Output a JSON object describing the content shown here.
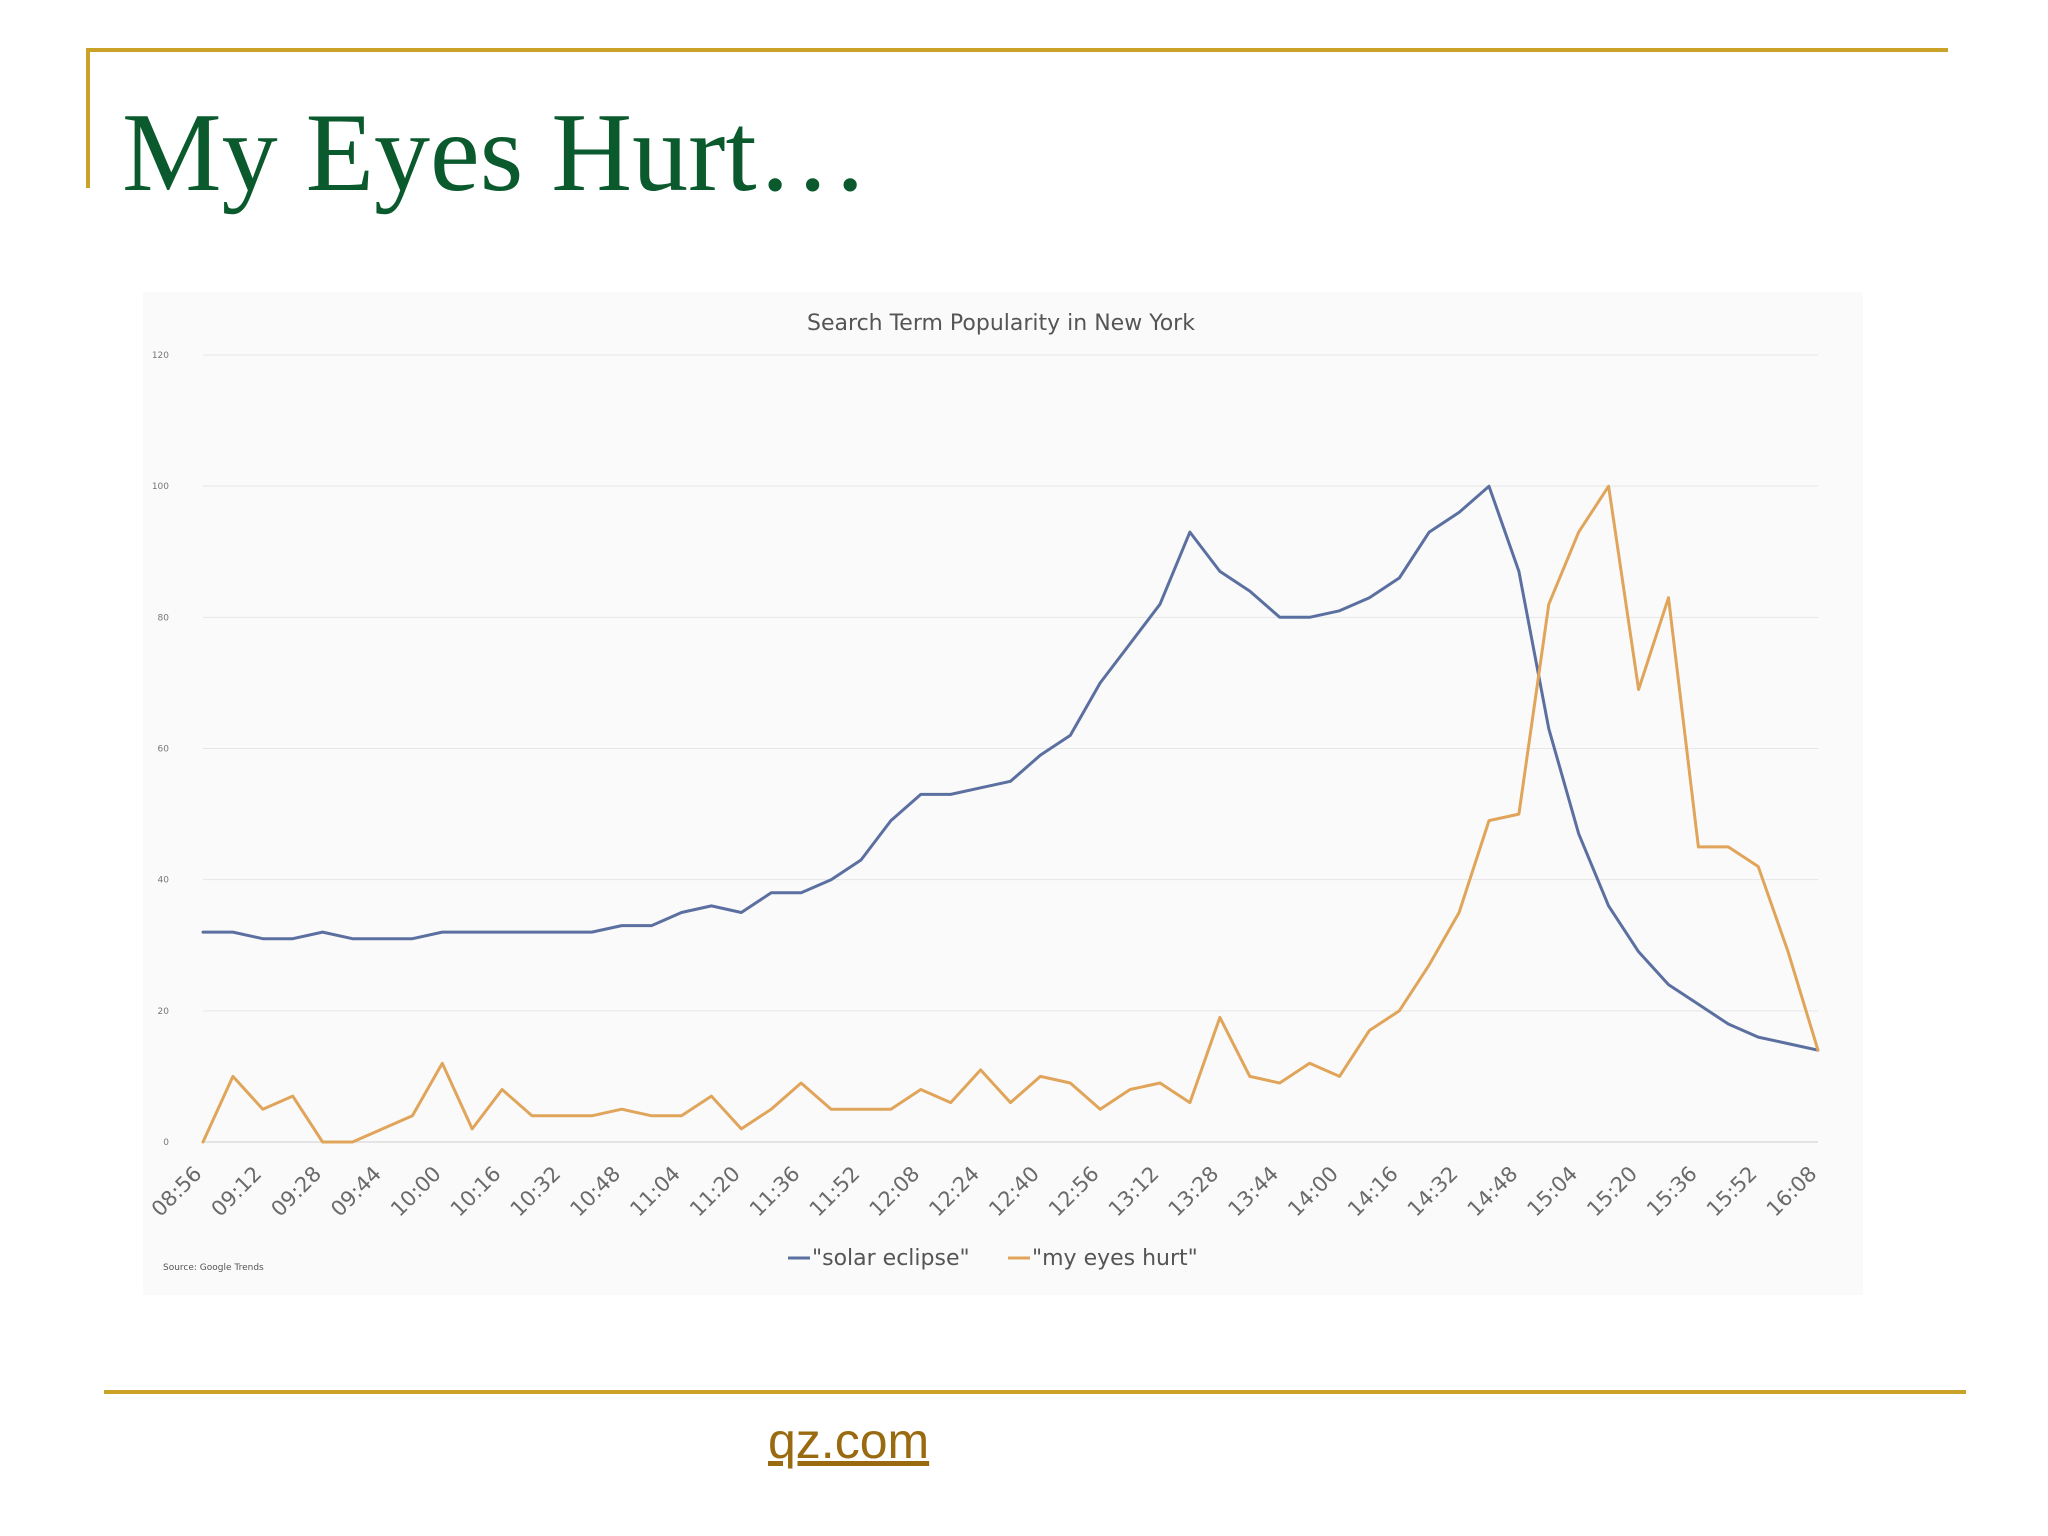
{
  "slide": {
    "title": "My Eyes Hurt…",
    "source_link": "qz.com",
    "colors": {
      "title": "#0b5a2e",
      "rules": "#c9a227",
      "link": "#9a6a10"
    }
  },
  "chart_data": {
    "type": "line",
    "title": "Search Term Popularity in New York",
    "source_note": "Source: Google Trends",
    "xlabel": "",
    "ylabel": "",
    "ylim": [
      0,
      120
    ],
    "yticks": [
      0,
      20,
      40,
      60,
      80,
      100,
      120
    ],
    "x_tick_labels": [
      "08:56",
      "09:12",
      "09:28",
      "09:44",
      "10:00",
      "10:16",
      "10:32",
      "10:48",
      "11:04",
      "11:20",
      "11:36",
      "11:52",
      "12:08",
      "12:24",
      "12:40",
      "12:56",
      "13:12",
      "13:28",
      "13:44",
      "14:00",
      "14:16",
      "14:32",
      "14:48",
      "15:04",
      "15:20",
      "15:36",
      "15:52",
      "16:08"
    ],
    "grid": true,
    "legend_position": "bottom",
    "series": [
      {
        "name": "\"solar eclipse\"",
        "color": "#5b6fa0",
        "values": [
          32,
          32,
          31,
          31,
          32,
          31,
          31,
          31,
          32,
          32,
          32,
          32,
          32,
          32,
          33,
          33,
          35,
          36,
          35,
          38,
          38,
          40,
          43,
          49,
          53,
          53,
          54,
          55,
          59,
          62,
          70,
          76,
          82,
          93,
          87,
          84,
          80,
          80,
          81,
          83,
          86,
          93,
          96,
          100,
          87,
          63,
          47,
          36,
          29,
          24,
          21,
          18,
          16,
          15,
          14
        ]
      },
      {
        "name": "\"my eyes hurt\"",
        "color": "#e0a55a",
        "values": [
          0,
          10,
          5,
          7,
          0,
          0,
          2,
          4,
          12,
          2,
          8,
          4,
          4,
          4,
          5,
          4,
          4,
          7,
          2,
          5,
          9,
          5,
          5,
          5,
          8,
          6,
          11,
          6,
          10,
          9,
          5,
          8,
          9,
          6,
          19,
          10,
          9,
          12,
          10,
          17,
          20,
          27,
          35,
          49,
          50,
          82,
          93,
          100,
          69,
          83,
          45,
          45,
          42,
          29,
          14
        ]
      }
    ]
  }
}
